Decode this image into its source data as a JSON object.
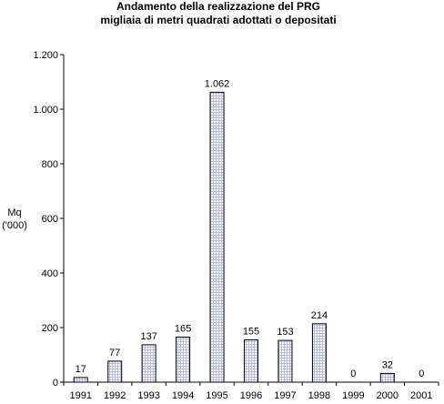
{
  "chart_data": {
    "type": "bar",
    "title": "Andamento della realizzazione del PRG",
    "subtitle": "migliaia di metri quadrati adottati o depositati",
    "ylabel_line1": "Mq",
    "ylabel_line2": "('000)",
    "categories": [
      "1991",
      "1992",
      "1993",
      "1994",
      "1995",
      "1996",
      "1997",
      "1998",
      "1999",
      "2000",
      "2001"
    ],
    "values": [
      17,
      77,
      137,
      165,
      1062,
      155,
      153,
      214,
      0,
      32,
      0
    ],
    "value_labels": [
      "17",
      "77",
      "137",
      "165",
      "1.062",
      "155",
      "153",
      "214",
      "0",
      "32",
      "0"
    ],
    "ylim": [
      0,
      1200
    ],
    "yticks": [
      0,
      200,
      400,
      600,
      800,
      1000,
      1200
    ],
    "ytick_labels": [
      "0",
      "200",
      "400",
      "600",
      "800",
      "1.000",
      "1.200"
    ],
    "grid": false,
    "legend": "none",
    "bar_color": "#b8b8e8",
    "bar_fill": "#ffffff",
    "bar_outline": "#000000"
  }
}
